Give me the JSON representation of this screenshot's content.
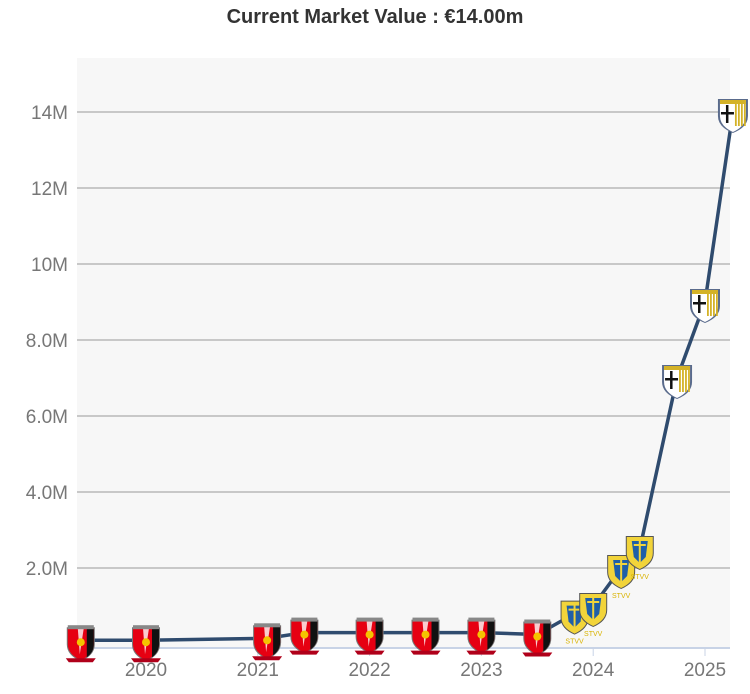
{
  "chart_data": {
    "type": "line",
    "title": "Current Market Value : €14.00m",
    "xlabel": "",
    "ylabel": "",
    "ylim": [
      0,
      15000000
    ],
    "xlim": [
      "2019-05",
      "2025-04"
    ],
    "grid": true,
    "legend": "none",
    "line_color": "#2f4b6e",
    "y_ticks": [
      {
        "value": 2000000,
        "label": "2.0M"
      },
      {
        "value": 4000000,
        "label": "4.0M"
      },
      {
        "value": 6000000,
        "label": "6.0M"
      },
      {
        "value": 8000000,
        "label": "8.0M"
      },
      {
        "value": 10000000,
        "label": "10M"
      },
      {
        "value": 12000000,
        "label": "12M"
      },
      {
        "value": 14000000,
        "label": "14M"
      }
    ],
    "x_ticks": [
      {
        "value": "2020-01",
        "label": "2020"
      },
      {
        "value": "2021-01",
        "label": "2021"
      },
      {
        "value": "2022-01",
        "label": "2022"
      },
      {
        "value": "2023-01",
        "label": "2023"
      },
      {
        "value": "2024-01",
        "label": "2024"
      },
      {
        "value": "2025-01",
        "label": "2025"
      }
    ],
    "points": [
      {
        "date": "2019-06",
        "value": 100000,
        "club": "urawa"
      },
      {
        "date": "2020-01",
        "value": 100000,
        "club": "urawa"
      },
      {
        "date": "2021-02",
        "value": 150000,
        "club": "urawa"
      },
      {
        "date": "2021-06",
        "value": 300000,
        "club": "urawa"
      },
      {
        "date": "2022-01",
        "value": 300000,
        "club": "urawa"
      },
      {
        "date": "2022-07",
        "value": 300000,
        "club": "urawa"
      },
      {
        "date": "2023-01",
        "value": 300000,
        "club": "urawa"
      },
      {
        "date": "2023-07",
        "value": 250000,
        "club": "urawa"
      },
      {
        "date": "2023-11",
        "value": 800000,
        "club": "stvv"
      },
      {
        "date": "2024-01",
        "value": 1000000,
        "club": "stvv"
      },
      {
        "date": "2024-04",
        "value": 2000000,
        "club": "stvv"
      },
      {
        "date": "2024-06",
        "value": 2500000,
        "club": "stvv"
      },
      {
        "date": "2024-10",
        "value": 7000000,
        "club": "parma"
      },
      {
        "date": "2025-01",
        "value": 9000000,
        "club": "parma"
      },
      {
        "date": "2025-04",
        "value": 14000000,
        "club": "parma"
      }
    ],
    "club_colors": {
      "urawa": [
        "#e60012",
        "#111111",
        "#f5c400"
      ],
      "stvv": [
        "#f2d43a",
        "#1f5fa8",
        "#f2d43a"
      ],
      "parma": [
        "#ffffff",
        "#111111",
        "#d4b227"
      ]
    }
  }
}
